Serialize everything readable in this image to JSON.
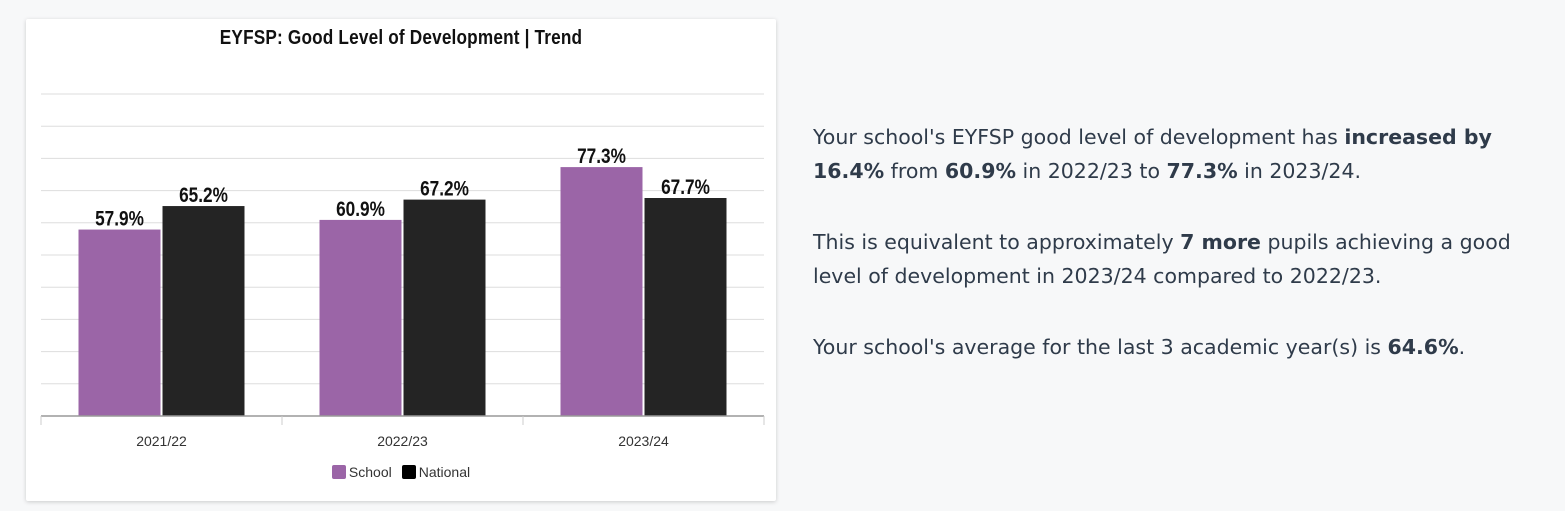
{
  "chart_data": {
    "type": "bar",
    "title": "EYFSP: Good Level of Development | Trend",
    "categories": [
      "2021/22",
      "2022/23",
      "2023/24"
    ],
    "series": [
      {
        "name": "School",
        "values": [
          57.9,
          60.9,
          77.3
        ],
        "labels": [
          "57.9%",
          "60.9%",
          "77.3%"
        ],
        "color": "#9b65a7"
      },
      {
        "name": "National",
        "values": [
          65.2,
          67.2,
          67.7
        ],
        "labels": [
          "65.2%",
          "67.2%",
          "67.7%"
        ],
        "color": "#242424"
      }
    ],
    "ylim": [
      0,
      100
    ],
    "grid": true,
    "legend_position": "bottom"
  },
  "summary": {
    "p1": {
      "t1": "Your school's EYFSP good level of development has ",
      "b1": "increased by 16.4%",
      "t2": " from ",
      "b2": "60.9%",
      "t3": " in 2022/23 to ",
      "b3": "77.3%",
      "t4": " in 2023/24."
    },
    "p2": {
      "t1": "This is equivalent to approximately ",
      "b1": "7 more",
      "t2": " pupils achieving a good level of development in 2023/24 compared to 2022/23."
    },
    "p3": {
      "t1": "Your school's average for the last 3 academic year(s) is ",
      "b1": "64.6%",
      "t2": "."
    }
  }
}
